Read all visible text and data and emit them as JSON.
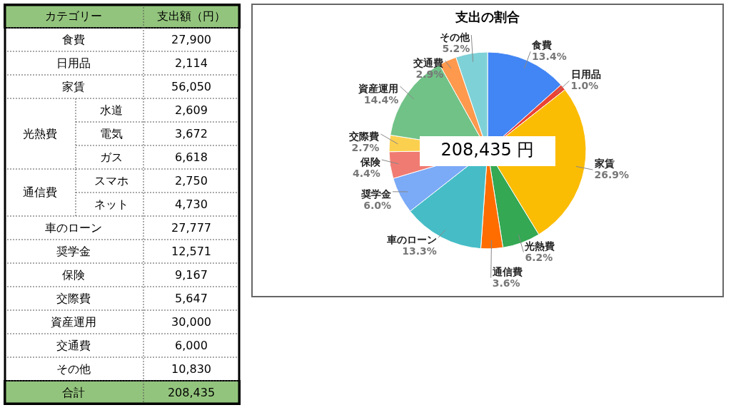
{
  "chart_data": [
    {
      "type": "other",
      "categories": [
        "食費",
        "日用品",
        "家賃",
        "水道",
        "電気",
        "ガス",
        "スマホ",
        "ネット",
        "車のローン",
        "奨学金",
        "保険",
        "交際費",
        "資産運用",
        "交通費",
        "その他",
        "合計"
      ],
      "values": [
        27900,
        2114,
        56050,
        2609,
        3672,
        6618,
        2750,
        4730,
        27777,
        12571,
        9167,
        5647,
        30000,
        6000,
        10830,
        208435
      ],
      "value_labels": [
        "27,900",
        "2,114",
        "56,050",
        "2,609",
        "3,672",
        "6,618",
        "2,750",
        "4,730",
        "27,777",
        "12,571",
        "9,167",
        "5,647",
        "30,000",
        "6,000",
        "10,830",
        "208,435"
      ],
      "annotations": [
        "カテゴリー",
        "支出額（円）",
        "光熱費",
        "通信費"
      ]
    },
    {
      "type": "pie",
      "title": "支出の割合",
      "categories": [
        "食費",
        "日用品",
        "家賃",
        "光熱費",
        "通信費",
        "車のローン",
        "奨学金",
        "保険",
        "交際費",
        "資産運用",
        "交通費",
        "その他"
      ],
      "values": [
        13.4,
        1.0,
        26.9,
        6.2,
        3.6,
        13.3,
        6.0,
        4.4,
        2.7,
        14.4,
        2.9,
        5.2
      ],
      "colors": [
        "#4285f4",
        "#ea4335",
        "#fbbc04",
        "#34a853",
        "#ff6d01",
        "#46bdc6",
        "#7baaf7",
        "#f07b72",
        "#fcd04f",
        "#71c287",
        "#ff994d",
        "#7ed1d7"
      ],
      "value_labels": [
        "13.4%",
        "1.0%",
        "26.9%",
        "6.2%",
        "3.6%",
        "13.3%",
        "6.0%",
        "4.4%",
        "2.7%",
        "14.4%",
        "2.9%",
        "5.2%"
      ],
      "annotations": [
        "208,435 円"
      ]
    }
  ]
}
